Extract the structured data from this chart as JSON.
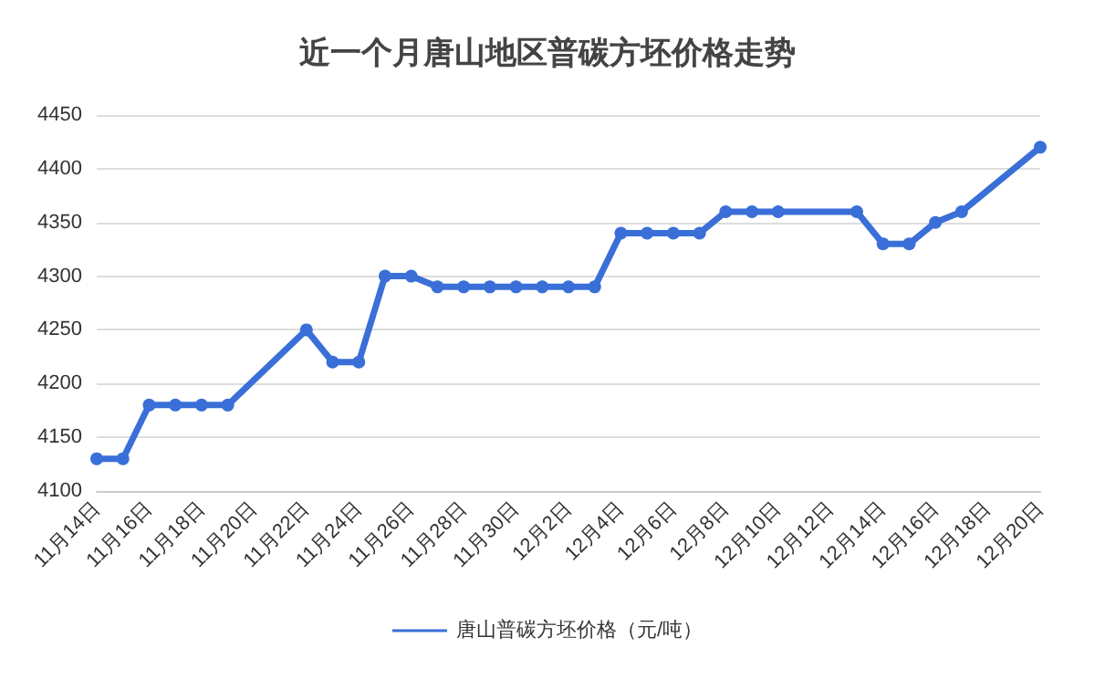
{
  "chart_data": {
    "type": "line",
    "title": "近一个月唐山地区普碳方坯价格走势",
    "x": [
      "--11-14",
      "--11-15",
      "--11-16",
      "--11-17",
      "--11-18",
      "--11-19",
      "--11-22",
      "--11-23",
      "--11-24",
      "--11-25",
      "--11-26",
      "--11-27",
      "--11-28",
      "--11-29",
      "--11-30",
      "--12-01",
      "--12-02",
      "--12-03",
      "--12-04",
      "--12-05",
      "--12-06",
      "--12-07",
      "--12-08",
      "--12-09",
      "--12-10",
      "--12-13",
      "--12-14",
      "--12-15",
      "--12-16",
      "--12-17",
      "--12-20"
    ],
    "series": [
      {
        "name": "唐山普碳方坯价格（元/吨）",
        "color": "#3a6fd8",
        "values": [
          4130,
          4130,
          4180,
          4180,
          4180,
          4180,
          4250,
          4220,
          4220,
          4300,
          4300,
          4290,
          4290,
          4290,
          4290,
          4290,
          4290,
          4290,
          4340,
          4340,
          4340,
          4340,
          4360,
          4360,
          4360,
          4360,
          4330,
          4330,
          4350,
          4360,
          4420
        ]
      }
    ],
    "xlim": [
      "--11-14",
      "--12-20"
    ],
    "xticks": [
      {
        "value": "--11-14",
        "label": "11月14日"
      },
      {
        "value": "--11-16",
        "label": "11月16日"
      },
      {
        "value": "--11-18",
        "label": "11月18日"
      },
      {
        "value": "--11-20",
        "label": "11月20日"
      },
      {
        "value": "--11-22",
        "label": "11月22日"
      },
      {
        "value": "--11-24",
        "label": "11月24日"
      },
      {
        "value": "--11-26",
        "label": "11月26日"
      },
      {
        "value": "--11-28",
        "label": "11月28日"
      },
      {
        "value": "--11-30",
        "label": "11月30日"
      },
      {
        "value": "--12-02",
        "label": "12月2日"
      },
      {
        "value": "--12-04",
        "label": "12月4日"
      },
      {
        "value": "--12-06",
        "label": "12月6日"
      },
      {
        "value": "--12-08",
        "label": "12月8日"
      },
      {
        "value": "--12-10",
        "label": "12月10日"
      },
      {
        "value": "--12-12",
        "label": "12月12日"
      },
      {
        "value": "--12-14",
        "label": "12月14日"
      },
      {
        "value": "--12-16",
        "label": "12月16日"
      },
      {
        "value": "--12-18",
        "label": "12月18日"
      },
      {
        "value": "--12-20",
        "label": "12月20日"
      }
    ],
    "ylim": [
      4100,
      4450
    ],
    "yticks": [
      4100,
      4150,
      4200,
      4250,
      4300,
      4350,
      4400,
      4450
    ],
    "grid": "y",
    "legend": "bottom",
    "marker": "circle",
    "line_style": "solid"
  }
}
